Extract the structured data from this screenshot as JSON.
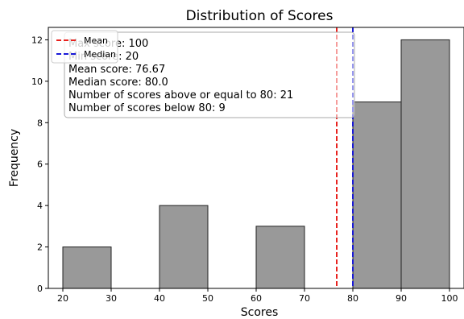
{
  "chart_data": {
    "type": "bar",
    "title": "Distribution of Scores",
    "xlabel": "Scores",
    "ylabel": "Frequency",
    "xlim": [
      17,
      103
    ],
    "ylim": [
      0,
      12.6
    ],
    "x_ticks": [
      20,
      30,
      40,
      50,
      60,
      70,
      80,
      90,
      100
    ],
    "y_ticks": [
      0,
      2,
      4,
      6,
      8,
      10,
      12
    ],
    "bar_color": "#999999",
    "bins": [
      {
        "start": 20,
        "end": 30,
        "count": 2
      },
      {
        "start": 30,
        "end": 40,
        "count": 0
      },
      {
        "start": 40,
        "end": 50,
        "count": 4
      },
      {
        "start": 50,
        "end": 60,
        "count": 0
      },
      {
        "start": 60,
        "end": 70,
        "count": 3
      },
      {
        "start": 70,
        "end": 80,
        "count": 0
      },
      {
        "start": 80,
        "end": 90,
        "count": 9
      },
      {
        "start": 90,
        "end": 100,
        "count": 12
      }
    ],
    "reference_lines": [
      {
        "name": "Mean",
        "value": 76.67,
        "color": "#e8211d",
        "style": "dashed"
      },
      {
        "name": "Median",
        "value": 80.0,
        "color": "#1818d8",
        "style": "dashed"
      }
    ],
    "legend_placement": "top-left",
    "grid": false,
    "stats_box": [
      "Max score: 100",
      "Min score: 20",
      "Mean score: 76.67",
      "Median score: 80.0",
      "Number of scores above or equal to 80: 21",
      "Number of scores below 80: 9"
    ]
  }
}
